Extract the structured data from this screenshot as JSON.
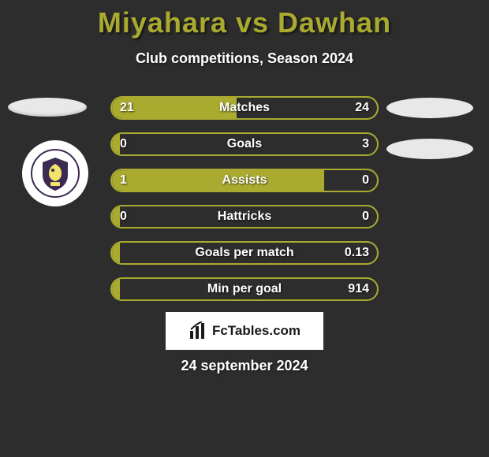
{
  "title_color": "#a9aa2f",
  "background_color": "#2d2d2d",
  "header": {
    "title": "Miyahara vs Dawhan",
    "subtitle": "Club competitions, Season 2024"
  },
  "bars": {
    "border_color": "#a9aa2f",
    "fill_color": "#a9aa2f",
    "track_color": "transparent",
    "rows": [
      {
        "label": "Matches",
        "left": "21",
        "right": "24",
        "fill_pct": 47
      },
      {
        "label": "Goals",
        "left": "0",
        "right": "3",
        "fill_pct": 3
      },
      {
        "label": "Assists",
        "left": "1",
        "right": "0",
        "fill_pct": 80
      },
      {
        "label": "Hattricks",
        "left": "0",
        "right": "0",
        "fill_pct": 3
      },
      {
        "label": "Goals per match",
        "left": "",
        "right": "0.13",
        "fill_pct": 3
      },
      {
        "label": "Min per goal",
        "left": "",
        "right": "914",
        "fill_pct": 3
      }
    ]
  },
  "brand": {
    "icon": "bar-chart-icon",
    "text": "FcTables.com",
    "plate_bg": "#ffffff",
    "text_color": "#1a1a1a"
  },
  "date": "24 september 2024",
  "badge": {
    "shield_color": "#3b2a52",
    "bird_color": "#f2e36b",
    "ring_text_color": "#3b2a52"
  },
  "ellipse_color": "#e8e8e8"
}
